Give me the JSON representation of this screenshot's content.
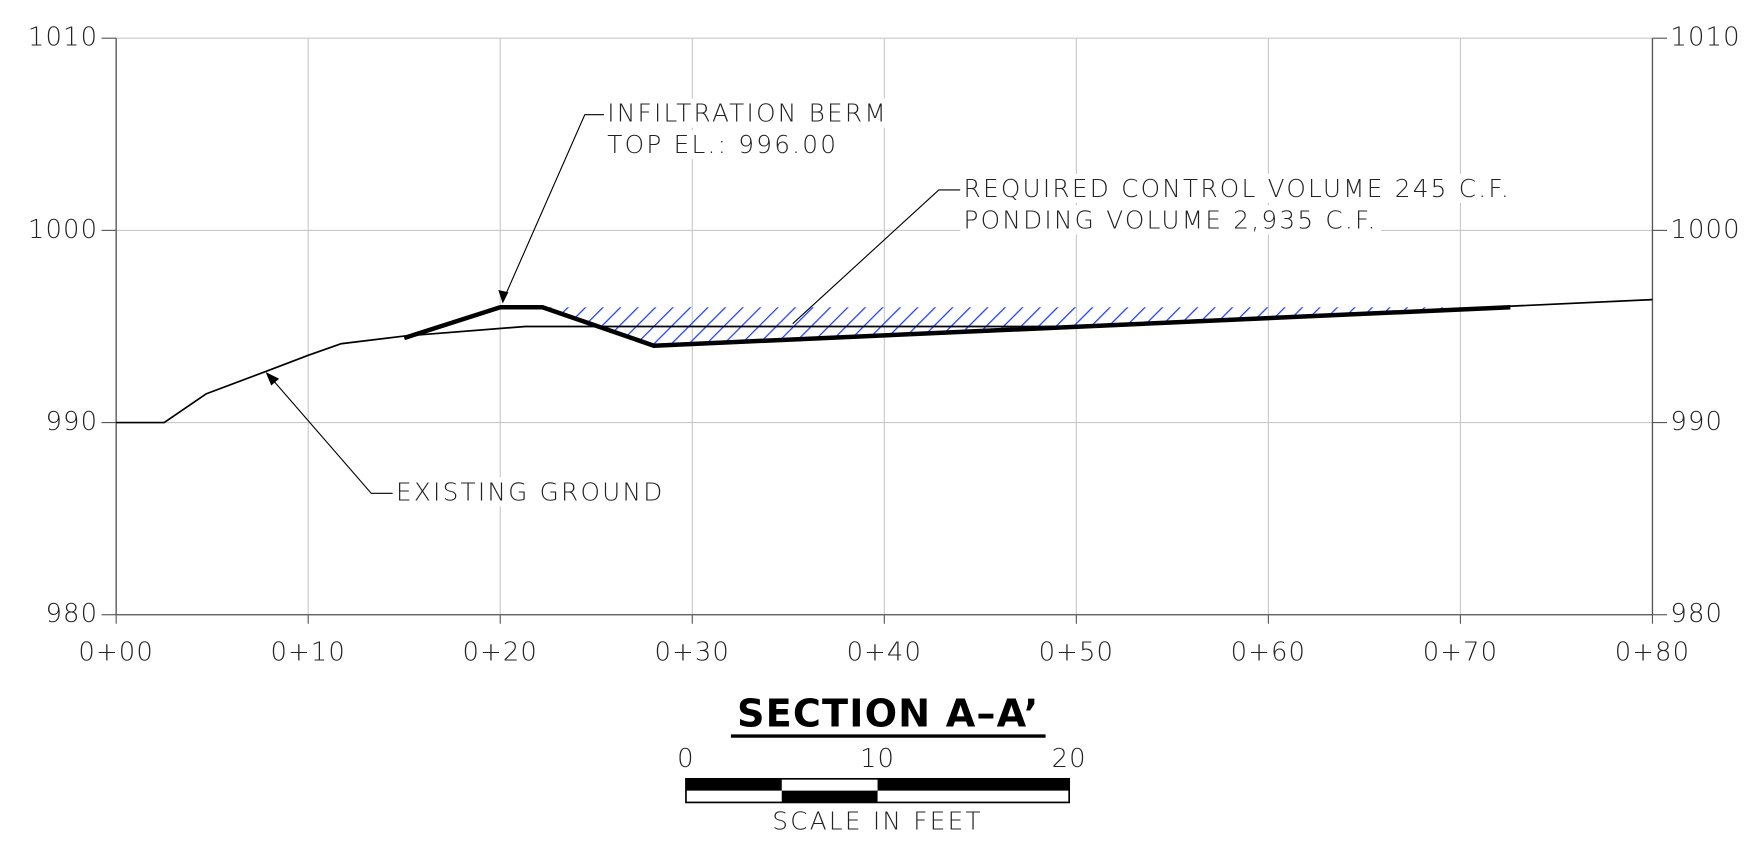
{
  "chart_data": {
    "type": "line",
    "title": "SECTION A–A’",
    "xlim": [
      0,
      80
    ],
    "xticks": [
      {
        "value": 0,
        "label": "0+00"
      },
      {
        "value": 10,
        "label": "0+10"
      },
      {
        "value": 20,
        "label": "0+20"
      },
      {
        "value": 30,
        "label": "0+30"
      },
      {
        "value": 40,
        "label": "0+40"
      },
      {
        "value": 50,
        "label": "0+50"
      },
      {
        "value": 60,
        "label": "0+60"
      },
      {
        "value": 70,
        "label": "0+70"
      },
      {
        "value": 80,
        "label": "0+80"
      }
    ],
    "ylim": [
      980,
      1010
    ],
    "yticks": [
      980,
      990,
      1000,
      1010
    ],
    "grid": true,
    "series": [
      {
        "color": "#000000",
        "x": [
          0,
          2.5,
          4.7,
          7.9,
          10,
          11.7,
          15,
          21.3,
          35,
          50,
          80
        ],
        "values": [
          990,
          990,
          991.5,
          992.7,
          993.5,
          994.1,
          994.5,
          995,
          995,
          995,
          996.4
        ]
      },
      {
        "color": "#000000",
        "x": [
          15,
          20,
          22.2,
          28,
          72.6
        ],
        "values": [
          994.4,
          996,
          996,
          994,
          996
        ],
        "hatch_color": "#1a3cff"
      }
    ],
    "annotations": [
      {
        "lines": [
          "INFILTRATION BERM",
          "TOP EL.: 996.00"
        ]
      },
      {
        "lines": [
          "REQUIRED CONTROL VOLUME 245 C.F.",
          "PONDING VOLUME 2,935 C.F."
        ]
      },
      {
        "lines": [
          "EXISTING GROUND"
        ]
      }
    ],
    "scale_bar": {
      "ticks": [
        0,
        10,
        20
      ],
      "label": "SCALE IN FEET"
    }
  }
}
